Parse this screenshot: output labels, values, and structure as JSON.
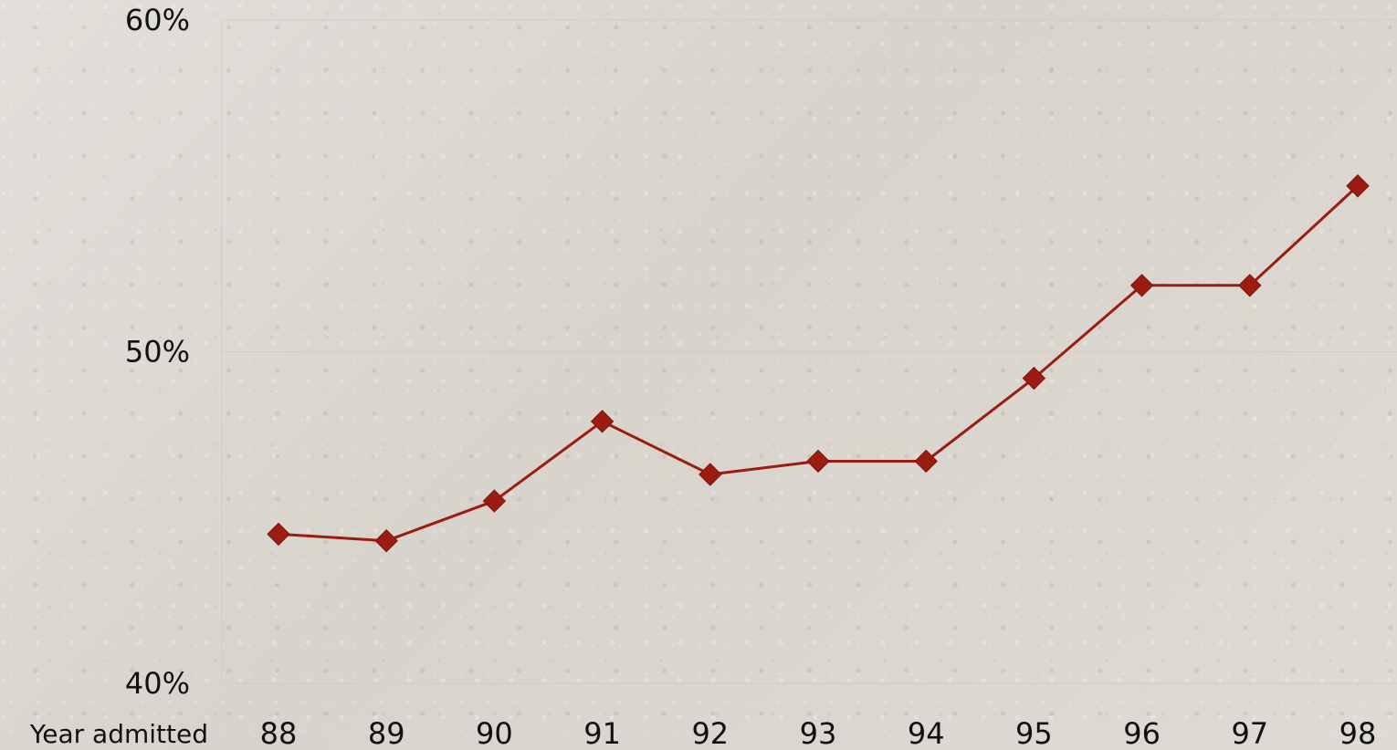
{
  "chart_data": {
    "type": "line",
    "title": "",
    "xlabel": "Year admitted",
    "ylabel": "",
    "categories": [
      "88",
      "89",
      "90",
      "91",
      "92",
      "93",
      "94",
      "95",
      "96",
      "97",
      "98"
    ],
    "series": [
      {
        "values": [
          44.5,
          44.3,
          45.5,
          47.9,
          46.3,
          46.7,
          46.7,
          49.2,
          52.0,
          52.0,
          55.0
        ]
      }
    ],
    "ylim": [
      40,
      60
    ],
    "yticks": [
      "40%",
      "50%",
      "60%"
    ],
    "grid": true,
    "line_color": "#9b1c10",
    "marker": "diamond",
    "grid_color": "#d0ccc6"
  }
}
